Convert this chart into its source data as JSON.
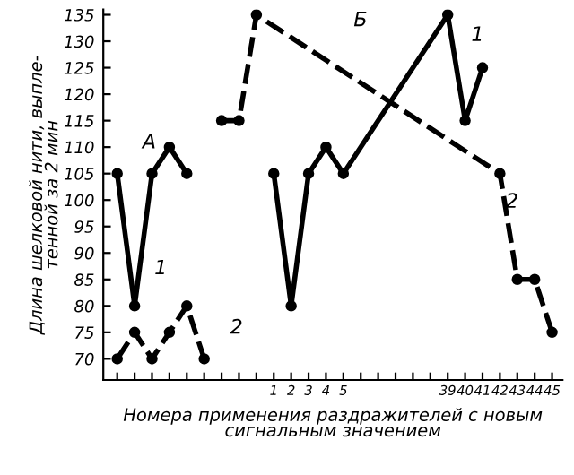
{
  "chart_data": {
    "type": "line",
    "xlabel": "Номера применения раздражителей с новым\nсигнальным значением",
    "ylabel": "Длина шелковой нити, выпле-\nтенной за 2 мин",
    "categories": [
      null,
      null,
      null,
      null,
      null,
      null,
      null,
      null,
      null,
      "1",
      "2",
      "3",
      "4",
      "5",
      null,
      null,
      null,
      null,
      null,
      "39",
      "40",
      "41",
      "42",
      "43",
      "44",
      "45"
    ],
    "ylim": [
      66,
      136
    ],
    "yticks": [
      70,
      75,
      80,
      85,
      90,
      95,
      100,
      105,
      110,
      115,
      120,
      125,
      130,
      135
    ],
    "grid": false,
    "legend": false,
    "marker": "circle",
    "series": [
      {
        "color": "#000000",
        "line_style": "solid",
        "values": [
          105,
          80,
          105,
          110,
          105,
          null,
          null,
          null,
          null,
          null,
          null,
          null,
          null,
          null,
          null,
          null,
          null,
          null,
          null,
          null,
          null,
          null,
          null,
          null,
          null,
          null
        ]
      },
      {
        "color": "#000000",
        "line_style": "dashed",
        "values": [
          70,
          75,
          70,
          75,
          80,
          70,
          null,
          null,
          null,
          null,
          null,
          null,
          null,
          null,
          null,
          null,
          null,
          null,
          null,
          null,
          null,
          null,
          null,
          null,
          null,
          null
        ]
      },
      {
        "color": "#000000",
        "line_style": "solid",
        "values": [
          null,
          null,
          null,
          null,
          null,
          null,
          null,
          null,
          null,
          105,
          80,
          105,
          110,
          105,
          null,
          null,
          null,
          null,
          null,
          135,
          115,
          125,
          null,
          null,
          null,
          null
        ]
      },
      {
        "color": "#000000",
        "line_style": "dashed",
        "values": [
          null,
          null,
          null,
          null,
          null,
          null,
          115,
          115,
          135,
          null,
          null,
          null,
          null,
          null,
          null,
          null,
          null,
          null,
          null,
          null,
          null,
          null,
          105,
          85,
          85,
          75
        ]
      }
    ],
    "annotations": [
      "А",
      "1",
      "2",
      "Б",
      "1",
      "2"
    ]
  }
}
